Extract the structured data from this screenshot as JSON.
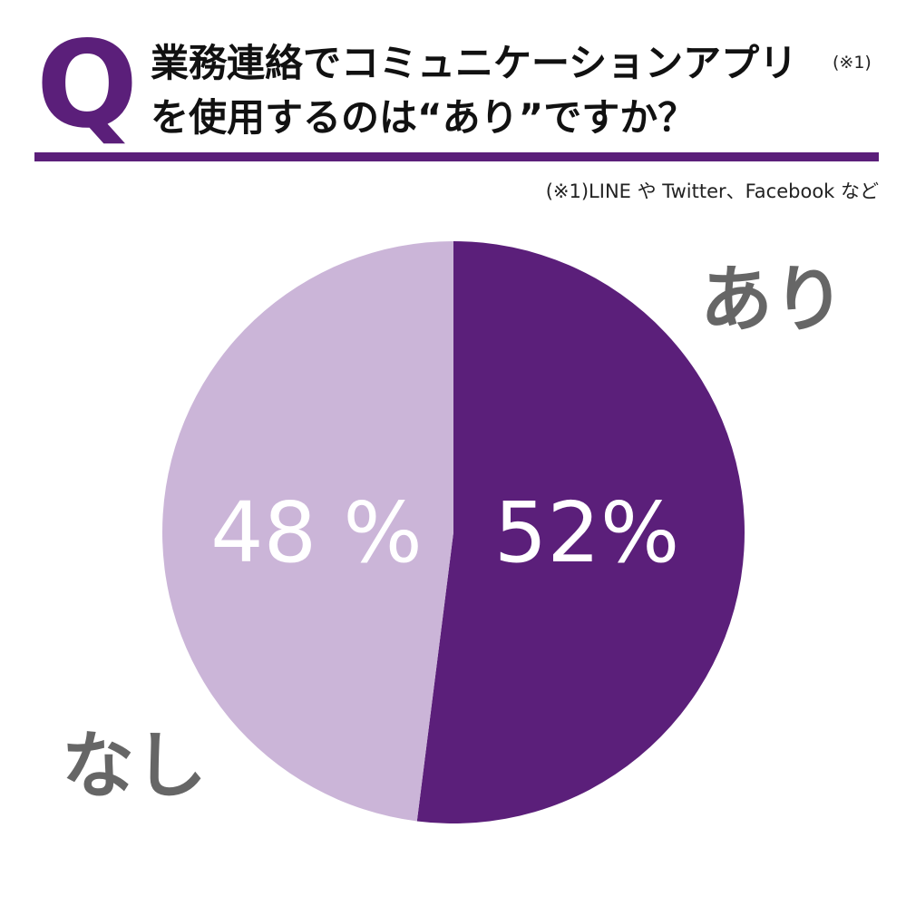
{
  "header": {
    "q_letter": "Q",
    "question_line1": "業務連絡でコミュニケーションアプリ",
    "question_note": "(※1)",
    "question_line2": "を使用するのは“あり”ですか？",
    "footnote": "(※1)LINE や Twitter、Facebook など"
  },
  "colors": {
    "accent": "#5b1f7a",
    "slice_yes": "#5b1f7a",
    "slice_no": "#cbb5d8",
    "category_label": "#666666",
    "percent_label": "#ffffff"
  },
  "chart_data": {
    "type": "pie",
    "categories": [
      "あり",
      "なし"
    ],
    "values": [
      52,
      48
    ],
    "labels": [
      "52%",
      "48 %"
    ],
    "start": "12 o'clock",
    "direction": "clockwise",
    "legend": "none"
  }
}
